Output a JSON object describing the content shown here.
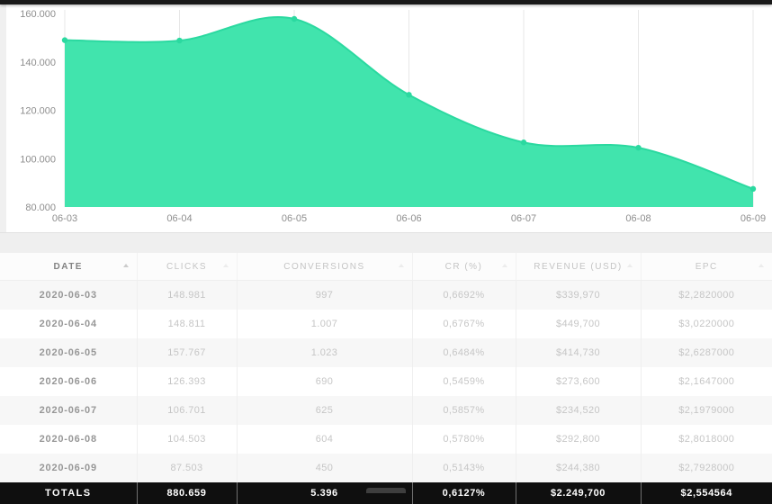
{
  "chart_data": {
    "type": "area",
    "title": "",
    "x_labels": [
      "06-03",
      "06-04",
      "06-05",
      "06-06",
      "06-07",
      "06-08",
      "06-09"
    ],
    "series": [
      {
        "name": "Clicks",
        "values": [
          148981,
          148811,
          157767,
          126393,
          106701,
          104503,
          87503
        ]
      }
    ],
    "ylim": [
      80000,
      160000
    ],
    "y_tick_values": [
      160000,
      140000,
      120000,
      100000,
      80000
    ],
    "y_tick_labels": [
      "160.000",
      "140.000",
      "120.000",
      "100.000",
      "80.000"
    ],
    "grid": "vertical-only",
    "legend": "none",
    "colors": {
      "area_fill": "#41E4AD",
      "line": "#2BD9A0",
      "marker": "#2BD9A0",
      "gridline": "#e7e7e7",
      "axis_text": "#8e8e8e"
    }
  },
  "table": {
    "columns": [
      {
        "label": "DATE",
        "sorted": "asc"
      },
      {
        "label": "CLICKS",
        "sorted": "none"
      },
      {
        "label": "CONVERSIONS",
        "sorted": "none"
      },
      {
        "label": "CR (%)",
        "sorted": "none"
      },
      {
        "label": "REVENUE (USD)",
        "sorted": "none"
      },
      {
        "label": "EPC",
        "sorted": "none"
      }
    ],
    "rows": [
      [
        "2020-06-03",
        "148.981",
        "997",
        "0,6692%",
        "$339,970",
        "$2,2820000"
      ],
      [
        "2020-06-04",
        "148.811",
        "1.007",
        "0,6767%",
        "$449,700",
        "$3,0220000"
      ],
      [
        "2020-06-05",
        "157.767",
        "1.023",
        "0,6484%",
        "$414,730",
        "$2,6287000"
      ],
      [
        "2020-06-06",
        "126.393",
        "690",
        "0,5459%",
        "$273,600",
        "$2,1647000"
      ],
      [
        "2020-06-07",
        "106.701",
        "625",
        "0,5857%",
        "$234,520",
        "$2,1979000"
      ],
      [
        "2020-06-08",
        "104.503",
        "604",
        "0,5780%",
        "$292,800",
        "$2,8018000"
      ],
      [
        "2020-06-09",
        "87.503",
        "450",
        "0,5143%",
        "$244,380",
        "$2,7928000"
      ]
    ],
    "totals": [
      "TOTALS",
      "880.659",
      "5.396",
      "0,6127%",
      "$2.249,700",
      "$2,554564"
    ]
  }
}
